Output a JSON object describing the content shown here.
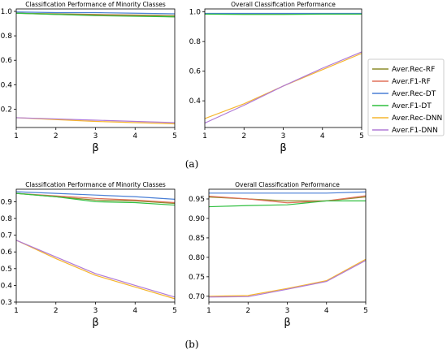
{
  "colors": {
    "Aver.Rec-RF": "#8b8b2a",
    "Aver.F1-RF": "#e0705a",
    "Aver.Rec-DT": "#4a7fd6",
    "Aver.F1-DT": "#2fbf3f",
    "Aver.Rec-DNN": "#f5b52e",
    "Aver.F1-DNN": "#b07ad6"
  },
  "legend": {
    "entries": [
      "Aver.Rec-RF",
      "Aver.F1-RF",
      "Aver.Rec-DT",
      "Aver.F1-DT",
      "Aver.Rec-DNN",
      "Aver.F1-DNN"
    ],
    "placement": "right"
  },
  "captions": [
    "(a)",
    "(b)"
  ],
  "chart_data": [
    {
      "type": "line",
      "title": "Classification Performance of Minority Classes",
      "xlabel": "β",
      "ylabel": "",
      "x": [
        1,
        2,
        3,
        4,
        5
      ],
      "xlim": [
        1,
        5
      ],
      "ylim": [
        0.05,
        1.02
      ],
      "yticks": [
        0.2,
        0.4,
        0.6,
        0.8,
        1.0
      ],
      "ytick_labels": [
        "0.2",
        "0.4",
        "0.6",
        "0.8",
        "1.0"
      ],
      "series": [
        {
          "name": "Aver.Rec-RF",
          "values": [
            0.985,
            0.98,
            0.975,
            0.97,
            0.965
          ]
        },
        {
          "name": "Aver.F1-RF",
          "values": [
            0.985,
            0.975,
            0.97,
            0.965,
            0.955
          ]
        },
        {
          "name": "Aver.Rec-DT",
          "values": [
            0.995,
            0.99,
            0.99,
            0.985,
            0.98
          ]
        },
        {
          "name": "Aver.F1-DT",
          "values": [
            0.985,
            0.975,
            0.965,
            0.96,
            0.955
          ]
        },
        {
          "name": "Aver.Rec-DNN",
          "values": [
            0.13,
            0.115,
            0.1,
            0.09,
            0.08
          ]
        },
        {
          "name": "Aver.F1-DNN",
          "values": [
            0.13,
            0.12,
            0.11,
            0.1,
            0.09
          ]
        }
      ]
    },
    {
      "type": "line",
      "title": "Overall Classification Performance",
      "xlabel": "β",
      "ylabel": "",
      "x": [
        1,
        2,
        3,
        4,
        5
      ],
      "xlim": [
        1,
        5
      ],
      "ylim": [
        0.22,
        1.02
      ],
      "yticks": [
        0.4,
        0.6,
        0.8,
        1.0
      ],
      "ytick_labels": [
        "0.4",
        "0.6",
        "0.8",
        "1.0"
      ],
      "series": [
        {
          "name": "Aver.Rec-RF",
          "values": [
            0.985,
            0.985,
            0.985,
            0.985,
            0.985
          ]
        },
        {
          "name": "Aver.F1-RF",
          "values": [
            0.985,
            0.985,
            0.985,
            0.985,
            0.985
          ]
        },
        {
          "name": "Aver.Rec-DT",
          "values": [
            0.99,
            0.99,
            0.99,
            0.99,
            0.99
          ]
        },
        {
          "name": "Aver.F1-DT",
          "values": [
            0.985,
            0.983,
            0.983,
            0.985,
            0.985
          ]
        },
        {
          "name": "Aver.Rec-DNN",
          "values": [
            0.28,
            0.38,
            0.5,
            0.61,
            0.72
          ]
        },
        {
          "name": "Aver.F1-DNN",
          "values": [
            0.25,
            0.37,
            0.5,
            0.62,
            0.73
          ]
        }
      ]
    },
    {
      "type": "line",
      "title": "Classification Performance of Minority Classes",
      "xlabel": "β",
      "ylabel": "",
      "x": [
        1,
        2,
        3,
        4,
        5
      ],
      "xlim": [
        1,
        5
      ],
      "ylim": [
        0.3,
        0.975
      ],
      "yticks": [
        0.3,
        0.4,
        0.5,
        0.6,
        0.7,
        0.8,
        0.9
      ],
      "ytick_labels": [
        "0.3",
        "0.4",
        "0.5",
        "0.6",
        "0.7",
        "0.8",
        "0.9"
      ],
      "series": [
        {
          "name": "Aver.Rec-RF",
          "values": [
            0.95,
            0.93,
            0.91,
            0.905,
            0.89
          ]
        },
        {
          "name": "Aver.F1-RF",
          "values": [
            0.95,
            0.935,
            0.92,
            0.91,
            0.895
          ]
        },
        {
          "name": "Aver.Rec-DT",
          "values": [
            0.96,
            0.95,
            0.94,
            0.93,
            0.915
          ]
        },
        {
          "name": "Aver.F1-DT",
          "values": [
            0.95,
            0.93,
            0.9,
            0.895,
            0.88
          ]
        },
        {
          "name": "Aver.Rec-DNN",
          "values": [
            0.67,
            0.56,
            0.46,
            0.39,
            0.32
          ]
        },
        {
          "name": "Aver.F1-DNN",
          "values": [
            0.67,
            0.57,
            0.47,
            0.4,
            0.33
          ]
        }
      ]
    },
    {
      "type": "line",
      "title": "Overall Classification Performance",
      "xlabel": "β",
      "ylabel": "",
      "x": [
        1,
        2,
        3,
        4,
        5
      ],
      "xlim": [
        1,
        5
      ],
      "ylim": [
        0.685,
        0.975
      ],
      "yticks": [
        0.7,
        0.75,
        0.8,
        0.85,
        0.9,
        0.95
      ],
      "ytick_labels": [
        "0.70",
        "0.75",
        "0.80",
        "0.85",
        "0.90",
        "0.95"
      ],
      "series": [
        {
          "name": "Aver.Rec-RF",
          "values": [
            0.955,
            0.95,
            0.945,
            0.945,
            0.955
          ]
        },
        {
          "name": "Aver.F1-RF",
          "values": [
            0.957,
            0.95,
            0.94,
            0.945,
            0.958
          ]
        },
        {
          "name": "Aver.Rec-DT",
          "values": [
            0.965,
            0.965,
            0.965,
            0.965,
            0.968
          ]
        },
        {
          "name": "Aver.F1-DT",
          "values": [
            0.93,
            0.933,
            0.935,
            0.945,
            0.945
          ]
        },
        {
          "name": "Aver.Rec-DNN",
          "values": [
            0.7,
            0.702,
            0.72,
            0.74,
            0.795
          ]
        },
        {
          "name": "Aver.F1-DNN",
          "values": [
            0.698,
            0.699,
            0.718,
            0.738,
            0.792
          ]
        }
      ]
    }
  ]
}
